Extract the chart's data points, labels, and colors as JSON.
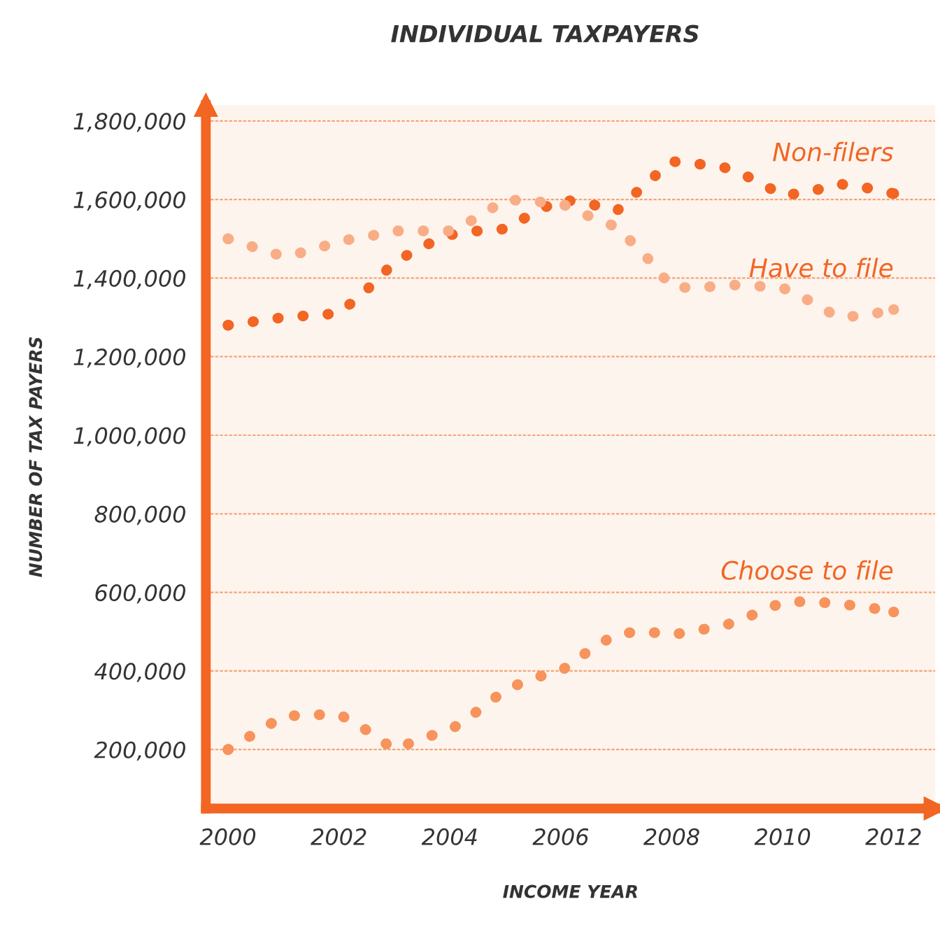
{
  "chart_data": {
    "type": "line",
    "title": "INDIVIDUAL TAXPAYERS",
    "xlabel": "INCOME YEAR",
    "ylabel": "NUMBER OF TAX PAYERS",
    "xlim": [
      1999.6,
      2012.75
    ],
    "xticks": [
      2000,
      2002,
      2004,
      2006,
      2008,
      2010,
      2012
    ],
    "ylim": [
      50000,
      1840000
    ],
    "yticks": [
      {
        "value": 200000,
        "label": "200,000"
      },
      {
        "value": 400000,
        "label": "400,000"
      },
      {
        "value": 600000,
        "label": "600,000"
      },
      {
        "value": 800000,
        "label": "800,000"
      },
      {
        "value": 1000000,
        "label": "1,000,000"
      },
      {
        "value": 1200000,
        "label": "1,200,000"
      },
      {
        "value": 1400000,
        "label": "1,400,000"
      },
      {
        "value": 1600000,
        "label": "1,600,000"
      },
      {
        "value": 1800000,
        "label": "1,800,000"
      }
    ],
    "grid": "y",
    "legend": false,
    "line_style": "dotted",
    "x": [
      2000,
      2000.5,
      2001,
      2001.5,
      2002,
      2002.5,
      2003,
      2003.5,
      2004,
      2004.5,
      2005,
      2005.5,
      2006,
      2006.5,
      2007,
      2007.5,
      2008,
      2008.5,
      2009,
      2009.5,
      2010,
      2010.5,
      2011,
      2011.5,
      2012
    ],
    "series": [
      {
        "name": "Non-filers",
        "color": "#f26522",
        "values": [
          1280000,
          1290000,
          1300000,
          1305000,
          1310000,
          1370000,
          1440000,
          1480000,
          1510000,
          1520000,
          1525000,
          1565000,
          1600000,
          1590000,
          1570000,
          1636000,
          1697000,
          1690000,
          1680000,
          1650000,
          1610000,
          1620000,
          1640000,
          1630000,
          1615000
        ]
      },
      {
        "name": "Have to file",
        "color": "#f9ad86",
        "values": [
          1500000,
          1477000,
          1455000,
          1470000,
          1494000,
          1505000,
          1520000,
          1520000,
          1520000,
          1554000,
          1600000,
          1595000,
          1590000,
          1558000,
          1530000,
          1461000,
          1377000,
          1375000,
          1383000,
          1380000,
          1375000,
          1341000,
          1300000,
          1305000,
          1320000
        ]
      },
      {
        "name": "Choose to file",
        "color": "#f7935b",
        "values": [
          200000,
          243000,
          285000,
          288000,
          290000,
          249000,
          200000,
          229000,
          249000,
          298000,
          352000,
          382000,
          400000,
          451000,
          494000,
          501000,
          492000,
          504000,
          518000,
          545000,
          575000,
          577000,
          571000,
          563000,
          550000
        ]
      }
    ]
  }
}
